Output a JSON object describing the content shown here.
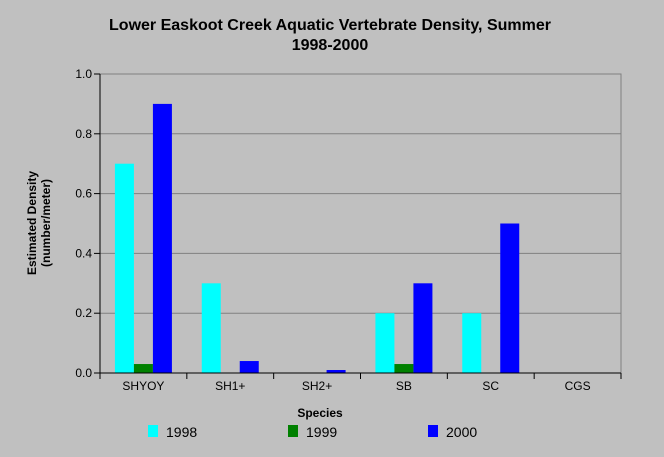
{
  "chart_data": {
    "type": "bar",
    "title": "Lower Easkoot Creek Aquatic Vertebrate Density, Summer",
    "subtitle": "1998-2000",
    "xlabel": "Species",
    "ylabel": [
      "Estimated Density",
      "(number/meter)"
    ],
    "categories": [
      "SHYOY",
      "SH1+",
      "SH2+",
      "SB",
      "SC",
      "CGS"
    ],
    "ylim": [
      0,
      1.0
    ],
    "yticks": [
      "0.0",
      "0.2",
      "0.4",
      "0.6",
      "0.8",
      "1.0"
    ],
    "grid": true,
    "legend_position": "bottom",
    "series": [
      {
        "name": "1998",
        "color": "#00ffff",
        "values": [
          0.7,
          0.3,
          0,
          0.2,
          0.2,
          0
        ]
      },
      {
        "name": "1999",
        "color": "#008000",
        "values": [
          0.03,
          0,
          0,
          0.03,
          0,
          0
        ]
      },
      {
        "name": "2000",
        "color": "#0000ff",
        "values": [
          0.9,
          0.04,
          0.01,
          0.3,
          0.5,
          0
        ]
      }
    ]
  }
}
